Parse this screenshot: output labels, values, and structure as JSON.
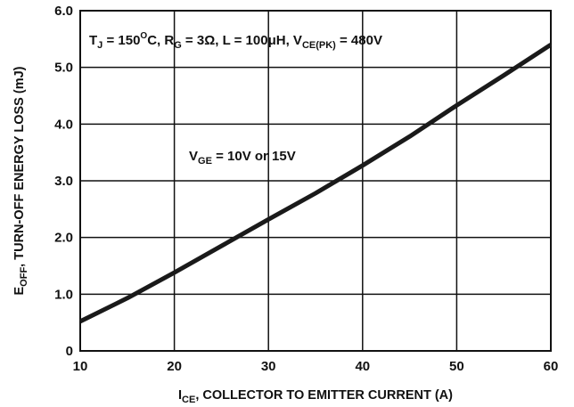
{
  "chart_data": {
    "type": "line",
    "xlabel": {
      "main": "I",
      "sub": "CE",
      "rest": ", COLLECTOR TO EMITTER CURRENT (A)"
    },
    "ylabel": {
      "main": "E",
      "sub": "OFF",
      "rest": ", TURN-OFF ENERGY LOSS  (mJ)"
    },
    "xlim": [
      10,
      60
    ],
    "ylim": [
      0,
      6
    ],
    "x_ticks": [
      "10",
      "20",
      "30",
      "40",
      "50",
      "60"
    ],
    "y_ticks": [
      "0",
      "1.0",
      "2.0",
      "3.0",
      "4.0",
      "5.0",
      "6.0"
    ],
    "grid": true,
    "annotations": {
      "conditions": {
        "tj": "T",
        "tj_sub": "J",
        "tj_val": " = 150",
        "deg": "O",
        "unit_c": "C, R",
        "rg_sub": "G",
        "rg_val": " = 3Ω, L = 100μH, V",
        "vce_sub": "CE(PK)",
        "vce_val": " = 480V"
      },
      "vge": {
        "main": "V",
        "sub": "GE",
        "rest": " = 10V or 15V"
      }
    },
    "series": [
      {
        "color": "#1a1a1a",
        "x": [
          10,
          15,
          20,
          25,
          30,
          35,
          40,
          45,
          50,
          55,
          60
        ],
        "y": [
          0.52,
          0.93,
          1.38,
          1.85,
          2.32,
          2.78,
          3.27,
          3.78,
          4.33,
          4.86,
          5.4
        ]
      }
    ]
  }
}
